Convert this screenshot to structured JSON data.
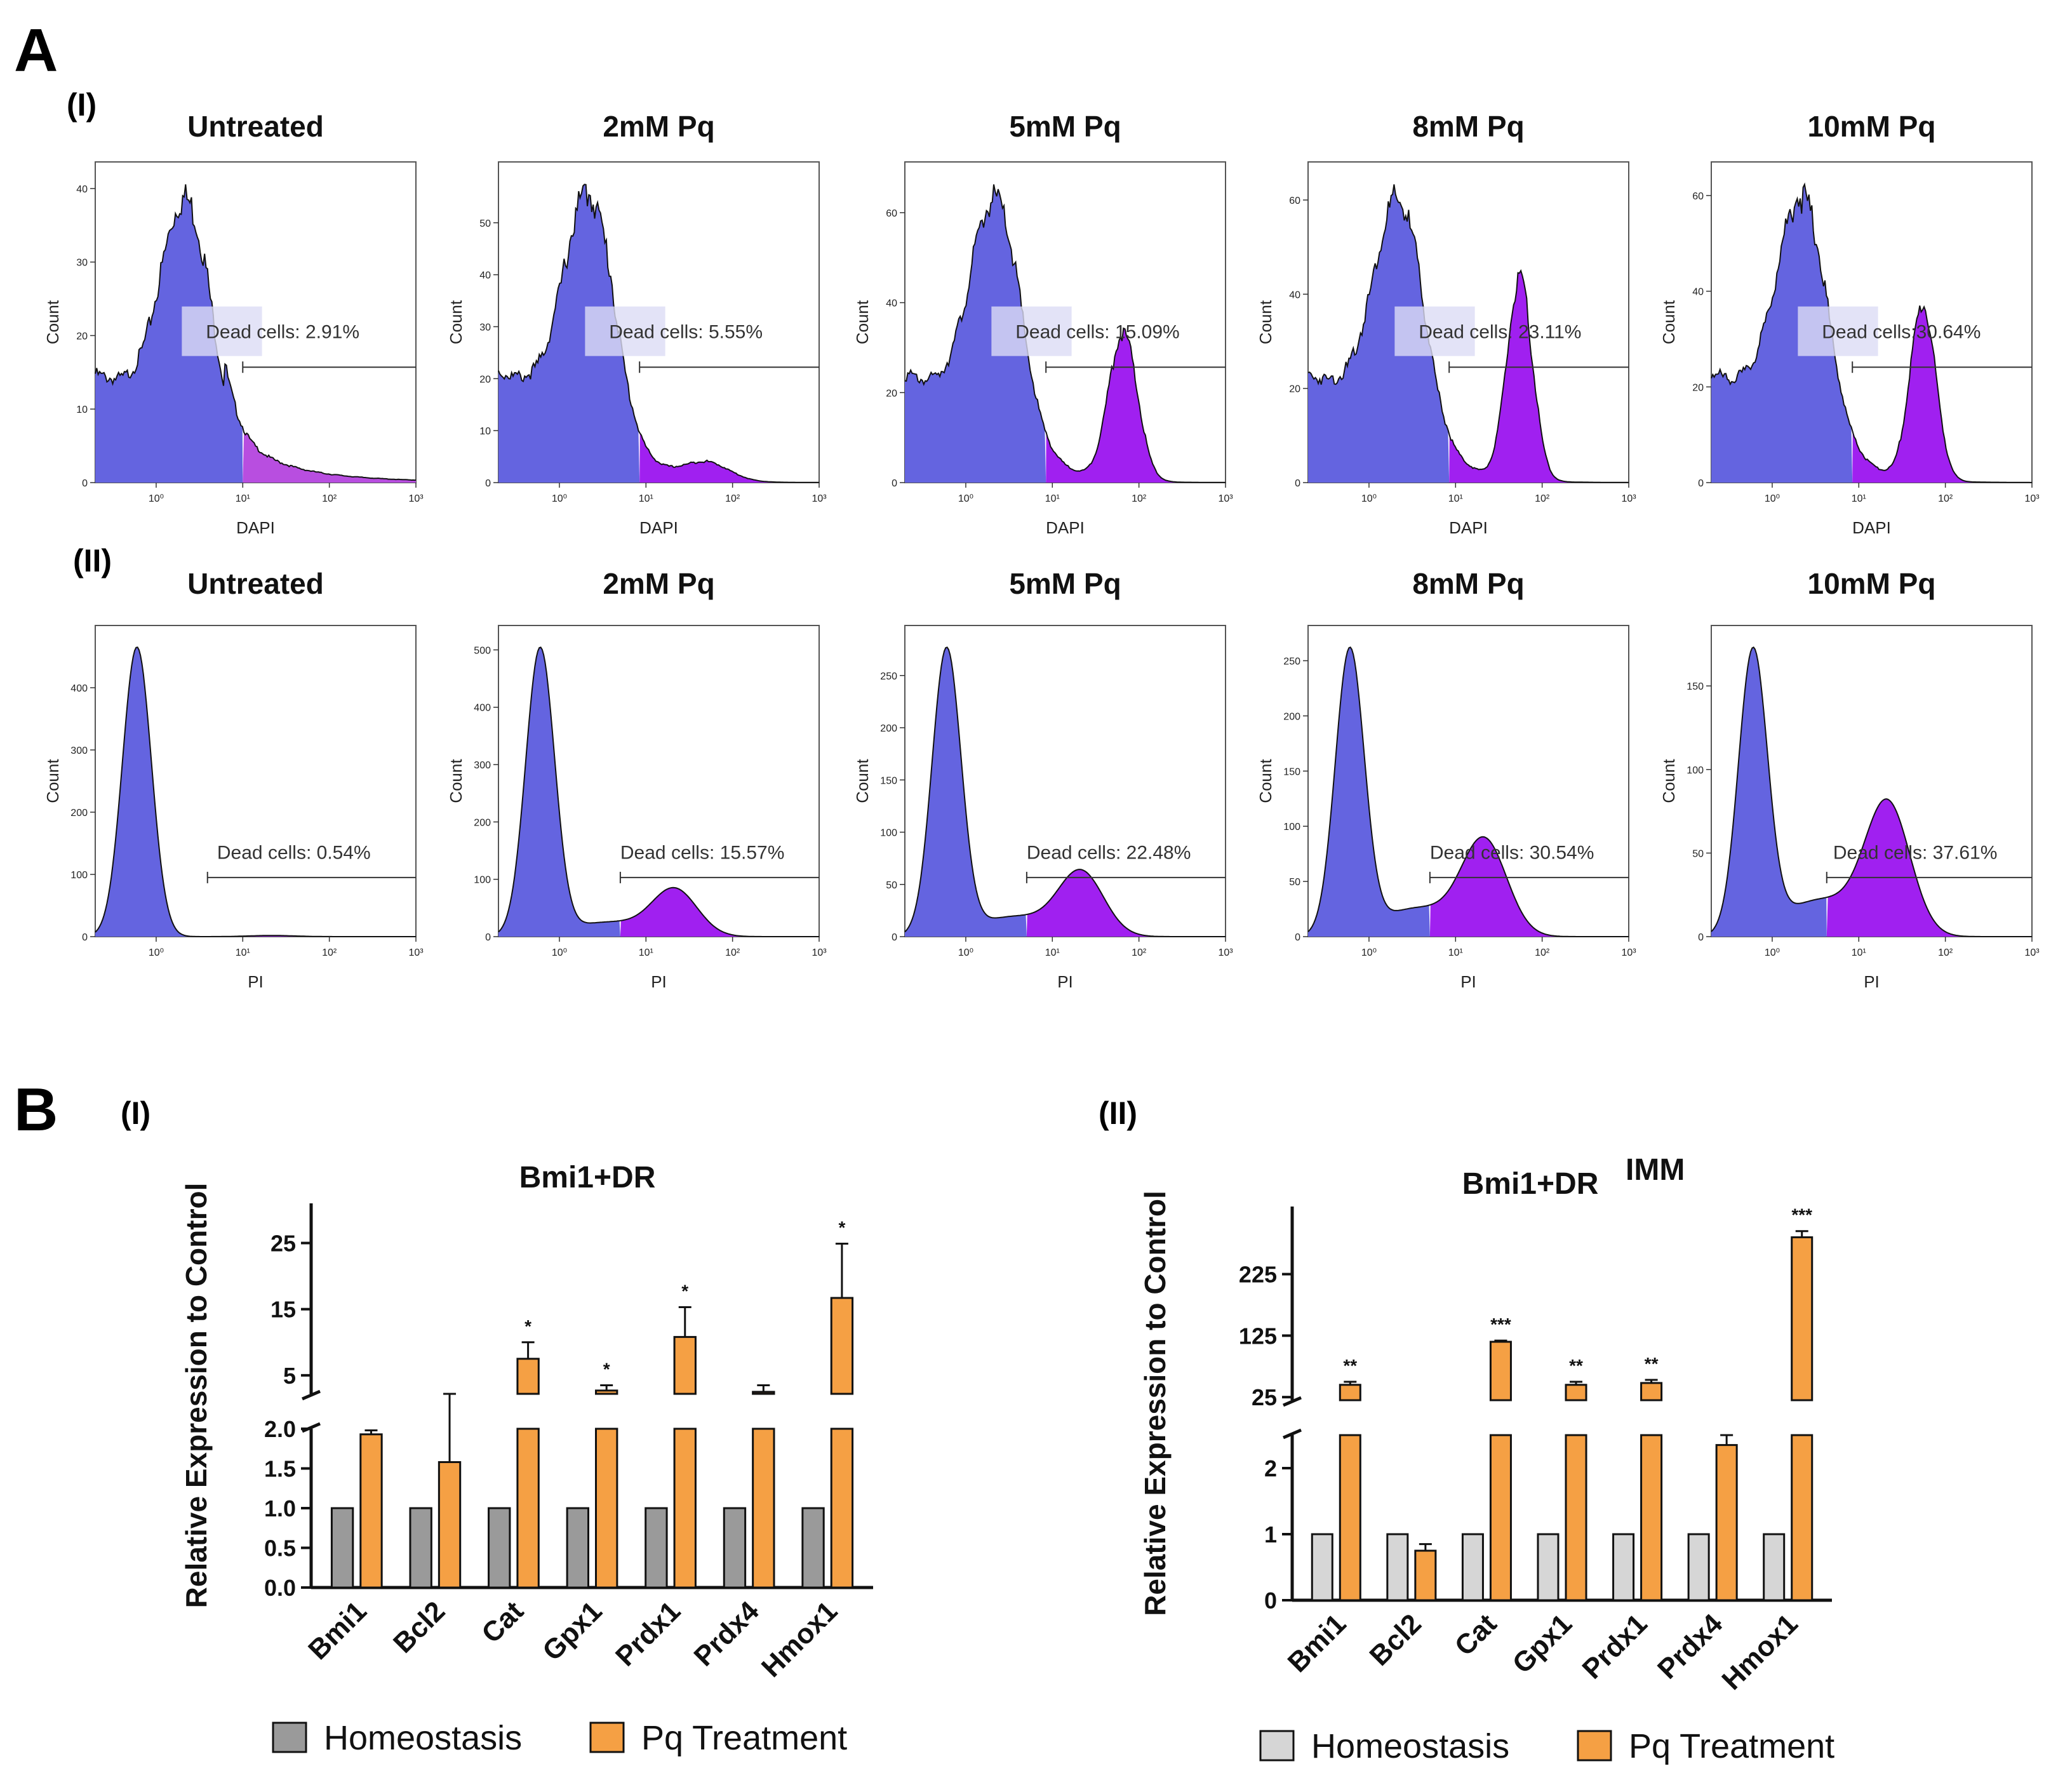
{
  "panels": {
    "A": "A",
    "B": "B",
    "AI": "(I)",
    "AII": "(II)",
    "BI": "(I)",
    "BII": "(II)"
  },
  "colors": {
    "live": "#6464e0",
    "dead_row1": "#a020f0",
    "dead_row1_light": "#b84ee0",
    "dead_row2": "#a020f0",
    "gray_dark": "#9a9a9a",
    "gray_light": "#d6d6d6",
    "orange": "#f5a044",
    "gate_box": "#dcdcf5"
  },
  "chart_data": [
    {
      "type": "area",
      "row": "DAPI",
      "xlabel": "DAPI",
      "ylabel": "Count",
      "x_ticks": [
        "10⁰",
        "10¹",
        "10²",
        "10³"
      ],
      "histograms": [
        {
          "title": "Untreated",
          "gate_label": "Dead cells: 2.91%",
          "dead_percent": 2.91,
          "yticks": [
            0,
            10,
            20,
            30,
            40
          ],
          "ymax": 41
        },
        {
          "title": "2mM Pq",
          "gate_label": "Dead cells: 5.55%",
          "dead_percent": 5.55,
          "yticks": [
            0,
            10,
            20,
            30,
            40,
            50
          ],
          "ymax": 58
        },
        {
          "title": "5mM Pq",
          "gate_label": "Dead cells: 15.09%",
          "dead_percent": 15.09,
          "yticks": [
            0,
            20,
            40,
            60
          ],
          "ymax": 67
        },
        {
          "title": "8mM Pq",
          "gate_label": "Dead cells: 23.11%",
          "dead_percent": 23.11,
          "yticks": [
            0,
            20,
            40,
            60
          ],
          "ymax": 64
        },
        {
          "title": "10mM Pq",
          "gate_label": "Dead cells:30.64%",
          "dead_percent": 30.64,
          "yticks": [
            0,
            20,
            40,
            60
          ],
          "ymax": 63
        }
      ]
    },
    {
      "type": "area",
      "row": "PI",
      "xlabel": "PI",
      "ylabel": "Count",
      "x_ticks": [
        "10⁰",
        "10¹",
        "10²",
        "10³"
      ],
      "histograms": [
        {
          "title": "Untreated",
          "gate_label": "Dead cells: 0.54%",
          "dead_percent": 0.54,
          "yticks": [
            0,
            100,
            200,
            300,
            400
          ],
          "ymax": 470
        },
        {
          "title": "2mM Pq",
          "gate_label": "Dead cells: 15.57%",
          "dead_percent": 15.57,
          "yticks": [
            0,
            100,
            200,
            300,
            400,
            500
          ],
          "ymax": 510
        },
        {
          "title": "5mM Pq",
          "gate_label": "Dead cells: 22.48%",
          "dead_percent": 22.48,
          "yticks": [
            0,
            50,
            100,
            150,
            200,
            250
          ],
          "ymax": 280
        },
        {
          "title": "8mM Pq",
          "gate_label": "Dead cells: 30.54%",
          "dead_percent": 30.54,
          "yticks": [
            0,
            50,
            100,
            150,
            200,
            250
          ],
          "ymax": 265
        },
        {
          "title": "10mM Pq",
          "gate_label": "Dead cells: 37.61%",
          "dead_percent": 37.61,
          "yticks": [
            0,
            50,
            100,
            150
          ],
          "ymax": 175
        }
      ]
    },
    {
      "type": "bar",
      "title": "Bmi1+DR",
      "title_sup": "",
      "ylabel": "Relative Expression to Control",
      "categories": [
        "Bmi1",
        "Bcl2",
        "Cat",
        "Gpx1",
        "Prdx1",
        "Prdx4",
        "Hmox1"
      ],
      "series": [
        {
          "name": "Homeostasis",
          "values": [
            1,
            1,
            1,
            1,
            1,
            1,
            1
          ],
          "errors": [
            0,
            0,
            0,
            0,
            0,
            0,
            0
          ]
        },
        {
          "name": "Pq Treatment",
          "values": [
            1.93,
            1.58,
            7.5,
            2.7,
            10.8,
            2.5,
            16.7
          ],
          "errors": [
            0.05,
            0.45,
            2.5,
            0.8,
            4.5,
            1.0,
            8.2
          ]
        }
      ],
      "significance": [
        "",
        "",
        "*",
        "*",
        "*",
        "",
        "*"
      ],
      "lower_axis": {
        "ylim": [
          0,
          2.0
        ],
        "ticks": [
          "0.0",
          "0.5",
          "1.0",
          "1.5",
          "2.0"
        ]
      },
      "upper_axis": {
        "ylim": [
          2.2,
          31
        ],
        "ticks": [
          "5",
          "15",
          "25"
        ]
      },
      "legend": [
        "Homeostasis",
        "Pq Treatment"
      ]
    },
    {
      "type": "bar",
      "title": "Bmi1+DR",
      "title_sup": "IMM",
      "ylabel": "Relative Expression to Control",
      "categories": [
        "Bmi1",
        "Bcl2",
        "Cat",
        "Gpx1",
        "Prdx1",
        "Prdx4",
        "Hmox1"
      ],
      "series": [
        {
          "name": "Homeostasis",
          "values": [
            1,
            1,
            1,
            1,
            1,
            1,
            1
          ],
          "errors": [
            0,
            0,
            0,
            0,
            0,
            0,
            0
          ]
        },
        {
          "name": "Pq Treatment",
          "values": [
            45,
            0.75,
            115,
            45,
            48,
            2.35,
            285
          ],
          "errors": [
            5,
            0.1,
            2,
            5,
            5,
            0.15,
            10
          ]
        }
      ],
      "significance": [
        "**",
        "",
        "***",
        "**",
        "**",
        "",
        "***"
      ],
      "lower_axis": {
        "ylim": [
          0,
          2.5
        ],
        "ticks": [
          "0",
          "1",
          "2"
        ]
      },
      "upper_axis": {
        "ylim": [
          20,
          335
        ],
        "ticks": [
          "25",
          "125",
          "225"
        ]
      },
      "legend": [
        "Homeostasis",
        "Pq Treatment"
      ]
    }
  ]
}
